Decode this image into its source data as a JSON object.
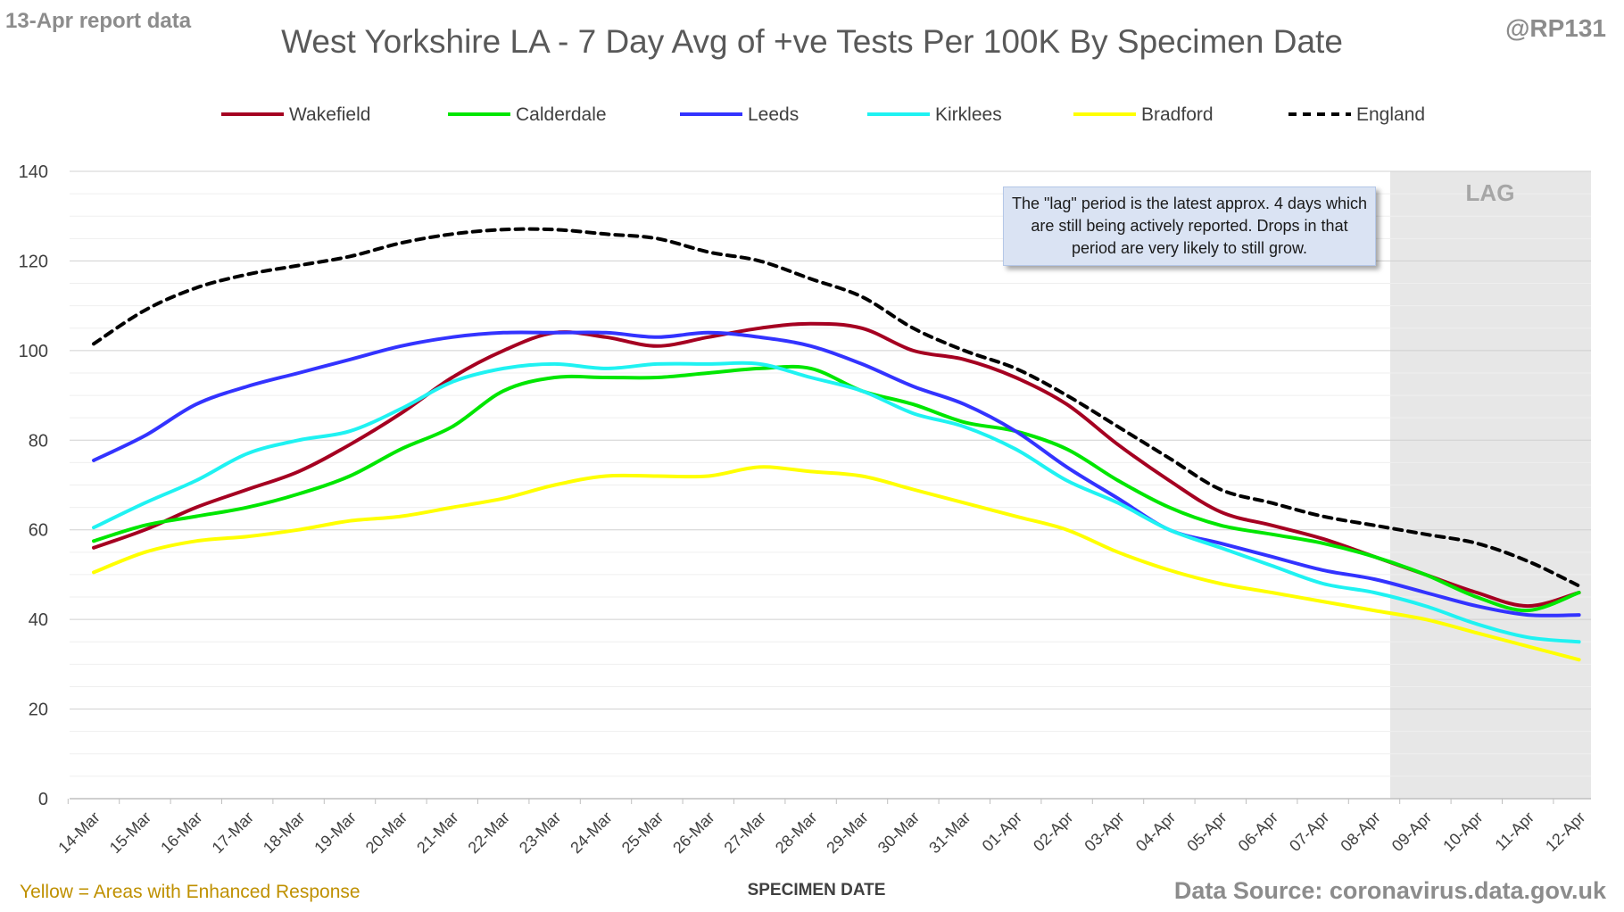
{
  "header": {
    "report_label": "13-Apr report data",
    "handle": "@RP131",
    "title": "West Yorkshire LA - 7 Day Avg of +ve Tests Per 100K By Specimen Date"
  },
  "footer": {
    "footnote": "Yellow = Areas with Enhanced Response",
    "source": "Data Source: coronavirus.data.gov.uk"
  },
  "annotation": {
    "lag_label": "LAG",
    "lag_note": "The \"lag\" period is the latest approx. 4 days which are still being actively reported. Drops in that period are very likely to still grow."
  },
  "chart_data": {
    "type": "line",
    "title": "West Yorkshire LA - 7 Day Avg of +ve Tests Per 100K By Specimen Date",
    "xlabel": "SPECIMEN DATE",
    "ylabel": "",
    "ylim": [
      0,
      140
    ],
    "yticks": [
      0,
      20,
      40,
      60,
      80,
      100,
      120,
      140
    ],
    "grid": true,
    "legend_position": "top",
    "lag_period": {
      "from": "09-Apr",
      "to": "12-Apr"
    },
    "categories": [
      "14-Mar",
      "15-Mar",
      "16-Mar",
      "17-Mar",
      "18-Mar",
      "19-Mar",
      "20-Mar",
      "21-Mar",
      "22-Mar",
      "23-Mar",
      "24-Mar",
      "25-Mar",
      "26-Mar",
      "27-Mar",
      "28-Mar",
      "29-Mar",
      "30-Mar",
      "31-Mar",
      "01-Apr",
      "02-Apr",
      "03-Apr",
      "04-Apr",
      "05-Apr",
      "06-Apr",
      "07-Apr",
      "08-Apr",
      "09-Apr",
      "10-Apr",
      "11-Apr",
      "12-Apr"
    ],
    "series": [
      {
        "name": "Wakefield",
        "color": "#a50021",
        "dashed": false,
        "values": [
          56,
          60,
          65,
          69,
          73,
          79,
          86,
          94,
          100,
          104,
          103,
          101,
          103,
          105,
          106,
          105,
          100,
          98,
          94,
          88,
          79,
          71,
          64,
          61,
          58,
          54,
          50,
          46,
          43,
          46
        ]
      },
      {
        "name": "Calderdale",
        "color": "#00e600",
        "dashed": false,
        "values": [
          57.5,
          61,
          63,
          65,
          68,
          72,
          78,
          83,
          91,
          94,
          94,
          94,
          95,
          96,
          96,
          91,
          88,
          84,
          82,
          78,
          71,
          65,
          61,
          59,
          57,
          54,
          50,
          45,
          42,
          46
        ]
      },
      {
        "name": "Leeds",
        "color": "#3333ff",
        "dashed": false,
        "values": [
          75.5,
          81,
          88,
          92,
          95,
          98,
          101,
          103,
          104,
          104,
          104,
          103,
          104,
          103,
          101,
          97,
          92,
          88,
          82,
          74,
          67,
          60,
          57,
          54,
          51,
          49,
          46,
          43,
          41,
          41
        ]
      },
      {
        "name": "Kirklees",
        "color": "#1ff2f2",
        "dashed": false,
        "values": [
          60.5,
          66,
          71,
          77,
          80,
          82,
          87,
          93,
          96,
          97,
          96,
          97,
          97,
          97,
          94,
          91,
          86,
          83,
          78,
          71,
          66,
          60,
          56,
          52,
          48,
          46,
          43,
          39,
          36,
          35
        ]
      },
      {
        "name": "Bradford",
        "color": "#ffff00",
        "dashed": false,
        "values": [
          50.5,
          55,
          57.5,
          58.5,
          60,
          62,
          63,
          65,
          67,
          70,
          72,
          72,
          72,
          74,
          73,
          72,
          69,
          66,
          63,
          60,
          55,
          51,
          48,
          46,
          44,
          42,
          40,
          37,
          34,
          31
        ]
      },
      {
        "name": "England",
        "color": "#000000",
        "dashed": true,
        "values": [
          101.5,
          109,
          114,
          117,
          119,
          121,
          124,
          126,
          127,
          127,
          126,
          125,
          122,
          120,
          116,
          112,
          105,
          100,
          96,
          90,
          83,
          76,
          69,
          66,
          63,
          61,
          59,
          57,
          53,
          47.5
        ]
      }
    ]
  }
}
